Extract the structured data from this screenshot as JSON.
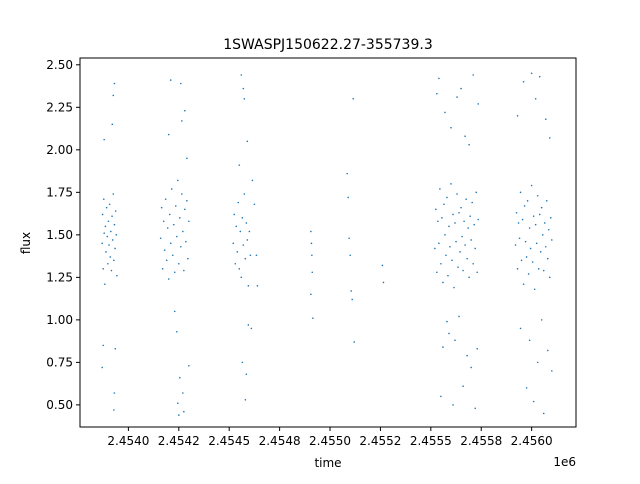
{
  "chart_data": {
    "type": "scatter",
    "title": "1SWASPJ150622.27-355739.3",
    "xlabel": "time",
    "ylabel": "flux",
    "x_offset_label": "1e6",
    "xlim": [
      2453760,
      2456220
    ],
    "ylim": [
      0.37,
      2.54
    ],
    "x_ticks": [
      2454000,
      2454250,
      2454500,
      2454750,
      2455000,
      2455250,
      2455500,
      2455750,
      2456000
    ],
    "x_tick_labels": [
      "2.4540",
      "2.4542",
      "2.4545",
      "2.4548",
      "2.4550",
      "2.4552",
      "2.4555",
      "2.4558",
      "2.4560"
    ],
    "y_ticks": [
      0.5,
      0.75,
      1.0,
      1.25,
      1.5,
      1.75,
      2.0,
      2.25,
      2.5
    ],
    "y_tick_labels": [
      "0.50",
      "0.75",
      "1.00",
      "1.25",
      "1.50",
      "1.75",
      "2.00",
      "2.25",
      "2.50"
    ],
    "grid": false,
    "point_color": "#1f77b4",
    "series": [
      {
        "points": [
          [
            2453870,
            1.45
          ],
          [
            2453872,
            1.62
          ],
          [
            2453875,
            1.3
          ],
          [
            2453878,
            1.71
          ],
          [
            2453880,
            1.51
          ],
          [
            2453883,
            1.21
          ],
          [
            2453886,
            1.55
          ],
          [
            2453889,
            1.4
          ],
          [
            2453892,
            1.66
          ],
          [
            2453895,
            1.49
          ],
          [
            2453898,
            1.33
          ],
          [
            2453901,
            1.58
          ],
          [
            2453904,
            1.44
          ],
          [
            2453907,
            1.68
          ],
          [
            2453910,
            1.37
          ],
          [
            2453913,
            1.52
          ],
          [
            2453916,
            1.29
          ],
          [
            2453919,
            1.61
          ],
          [
            2453922,
            1.47
          ],
          [
            2453925,
            1.74
          ],
          [
            2453928,
            1.35
          ],
          [
            2453931,
            1.56
          ],
          [
            2453934,
            1.42
          ],
          [
            2453937,
            1.64
          ],
          [
            2453940,
            1.5
          ],
          [
            2453943,
            1.26
          ],
          [
            2453880,
            2.06
          ],
          [
            2453875,
            0.85
          ],
          [
            2453870,
            0.72
          ],
          [
            2453931,
            2.39
          ],
          [
            2453925,
            2.32
          ],
          [
            2453928,
            0.47
          ],
          [
            2453935,
            0.83
          ],
          [
            2453920,
            2.15
          ],
          [
            2453930,
            0.57
          ],
          [
            2454160,
            1.48
          ],
          [
            2454165,
            1.66
          ],
          [
            2454170,
            1.3
          ],
          [
            2454175,
            1.58
          ],
          [
            2454180,
            1.41
          ],
          [
            2454185,
            1.71
          ],
          [
            2454190,
            1.35
          ],
          [
            2454195,
            1.54
          ],
          [
            2454200,
            1.24
          ],
          [
            2454205,
            1.62
          ],
          [
            2454210,
            1.45
          ],
          [
            2454215,
            1.77
          ],
          [
            2454220,
            1.38
          ],
          [
            2454225,
            1.56
          ],
          [
            2454230,
            1.28
          ],
          [
            2454235,
            1.67
          ],
          [
            2454240,
            1.49
          ],
          [
            2454245,
            1.82
          ],
          [
            2454250,
            1.33
          ],
          [
            2454255,
            1.6
          ],
          [
            2454260,
            1.43
          ],
          [
            2454265,
            1.74
          ],
          [
            2454270,
            1.52
          ],
          [
            2454275,
            1.29
          ],
          [
            2454280,
            1.65
          ],
          [
            2454285,
            1.46
          ],
          [
            2454290,
            1.7
          ],
          [
            2454295,
            1.36
          ],
          [
            2454300,
            1.58
          ],
          [
            2454200,
            2.09
          ],
          [
            2454210,
            2.41
          ],
          [
            2454230,
            1.05
          ],
          [
            2454240,
            0.93
          ],
          [
            2454245,
            0.51
          ],
          [
            2454250,
            0.44
          ],
          [
            2454255,
            0.66
          ],
          [
            2454260,
            2.39
          ],
          [
            2454265,
            2.17
          ],
          [
            2454270,
            0.57
          ],
          [
            2454275,
            0.46
          ],
          [
            2454280,
            2.23
          ],
          [
            2454290,
            1.95
          ],
          [
            2454300,
            0.73
          ],
          [
            2454520,
            1.45
          ],
          [
            2454525,
            1.62
          ],
          [
            2454530,
            1.33
          ],
          [
            2454535,
            1.55
          ],
          [
            2454540,
            1.4
          ],
          [
            2454545,
            1.69
          ],
          [
            2454550,
            1.3
          ],
          [
            2454555,
            1.52
          ],
          [
            2454560,
            1.25
          ],
          [
            2454565,
            1.6
          ],
          [
            2454570,
            1.44
          ],
          [
            2454575,
            1.74
          ],
          [
            2454580,
            1.36
          ],
          [
            2454585,
            1.57
          ],
          [
            2454590,
            1.47
          ],
          [
            2454595,
            1.2
          ],
          [
            2454560,
            2.44
          ],
          [
            2454570,
            2.36
          ],
          [
            2454575,
            2.3
          ],
          [
            2454580,
            0.53
          ],
          [
            2454585,
            0.68
          ],
          [
            2454590,
            2.05
          ],
          [
            2454595,
            0.97
          ],
          [
            2454565,
            0.75
          ],
          [
            2454550,
            1.91
          ],
          [
            2454600,
            1.52
          ],
          [
            2454605,
            1.38
          ],
          [
            2454610,
            0.95
          ],
          [
            2454615,
            1.82
          ],
          [
            2454625,
            1.68
          ],
          [
            2454635,
            1.38
          ],
          [
            2454640,
            1.2
          ],
          [
            2454905,
            1.52
          ],
          [
            2454908,
            1.45
          ],
          [
            2454910,
            1.38
          ],
          [
            2454912,
            1.28
          ],
          [
            2454915,
            1.01
          ],
          [
            2454905,
            1.15
          ],
          [
            2455085,
            1.86
          ],
          [
            2455090,
            1.72
          ],
          [
            2455095,
            1.48
          ],
          [
            2455100,
            1.38
          ],
          [
            2455105,
            1.17
          ],
          [
            2455110,
            1.12
          ],
          [
            2455115,
            2.3
          ],
          [
            2455120,
            0.87
          ],
          [
            2455260,
            1.32
          ],
          [
            2455265,
            1.22
          ],
          [
            2455520,
            1.42
          ],
          [
            2455525,
            1.65
          ],
          [
            2455530,
            1.28
          ],
          [
            2455535,
            1.58
          ],
          [
            2455540,
            1.45
          ],
          [
            2455545,
            1.77
          ],
          [
            2455550,
            1.33
          ],
          [
            2455555,
            1.6
          ],
          [
            2455560,
            1.22
          ],
          [
            2455565,
            1.68
          ],
          [
            2455570,
            1.5
          ],
          [
            2455575,
            1.38
          ],
          [
            2455580,
            1.72
          ],
          [
            2455585,
            1.26
          ],
          [
            2455590,
            1.55
          ],
          [
            2455595,
            1.43
          ],
          [
            2455600,
            1.8
          ],
          [
            2455605,
            1.35
          ],
          [
            2455610,
            1.62
          ],
          [
            2455615,
            1.19
          ],
          [
            2455620,
            1.57
          ],
          [
            2455625,
            1.46
          ],
          [
            2455630,
            1.74
          ],
          [
            2455635,
            1.31
          ],
          [
            2455640,
            1.63
          ],
          [
            2455645,
            1.4
          ],
          [
            2455650,
            1.66
          ],
          [
            2455655,
            1.49
          ],
          [
            2455660,
            1.29
          ],
          [
            2455665,
            1.58
          ],
          [
            2455670,
            1.44
          ],
          [
            2455675,
            1.71
          ],
          [
            2455680,
            1.36
          ],
          [
            2455685,
            1.54
          ],
          [
            2455690,
            1.25
          ],
          [
            2455695,
            1.61
          ],
          [
            2455700,
            1.47
          ],
          [
            2455705,
            1.69
          ],
          [
            2455710,
            1.33
          ],
          [
            2455715,
            1.56
          ],
          [
            2455720,
            1.42
          ],
          [
            2455725,
            1.75
          ],
          [
            2455730,
            1.28
          ],
          [
            2455735,
            1.59
          ],
          [
            2455530,
            2.33
          ],
          [
            2455540,
            2.42
          ],
          [
            2455550,
            0.55
          ],
          [
            2455560,
            0.84
          ],
          [
            2455570,
            2.22
          ],
          [
            2455580,
            0.99
          ],
          [
            2455590,
            0.92
          ],
          [
            2455600,
            2.13
          ],
          [
            2455610,
            0.5
          ],
          [
            2455620,
            0.88
          ],
          [
            2455630,
            2.31
          ],
          [
            2455640,
            1.02
          ],
          [
            2455650,
            2.36
          ],
          [
            2455660,
            0.61
          ],
          [
            2455670,
            2.08
          ],
          [
            2455680,
            0.79
          ],
          [
            2455690,
            2.03
          ],
          [
            2455700,
            0.72
          ],
          [
            2455710,
            2.44
          ],
          [
            2455720,
            0.48
          ],
          [
            2455730,
            0.83
          ],
          [
            2455735,
            2.27
          ],
          [
            2455920,
            1.44
          ],
          [
            2455925,
            1.63
          ],
          [
            2455930,
            1.3
          ],
          [
            2455935,
            1.57
          ],
          [
            2455940,
            1.48
          ],
          [
            2455945,
            1.75
          ],
          [
            2455950,
            1.35
          ],
          [
            2455955,
            1.59
          ],
          [
            2455960,
            1.21
          ],
          [
            2455965,
            1.67
          ],
          [
            2455970,
            1.46
          ],
          [
            2455975,
            1.37
          ],
          [
            2455980,
            1.7
          ],
          [
            2455985,
            1.27
          ],
          [
            2455990,
            1.54
          ],
          [
            2455995,
            1.42
          ],
          [
            2456000,
            1.79
          ],
          [
            2456005,
            1.34
          ],
          [
            2456010,
            1.61
          ],
          [
            2456015,
            1.18
          ],
          [
            2456020,
            1.56
          ],
          [
            2456025,
            1.45
          ],
          [
            2456030,
            1.73
          ],
          [
            2456035,
            1.3
          ],
          [
            2456040,
            1.62
          ],
          [
            2456045,
            1.4
          ],
          [
            2456050,
            1.66
          ],
          [
            2456055,
            1.5
          ],
          [
            2456060,
            1.29
          ],
          [
            2456065,
            1.57
          ],
          [
            2456070,
            1.43
          ],
          [
            2456075,
            1.7
          ],
          [
            2456080,
            1.36
          ],
          [
            2456085,
            1.53
          ],
          [
            2456090,
            1.25
          ],
          [
            2456095,
            1.6
          ],
          [
            2456100,
            1.47
          ],
          [
            2455930,
            2.2
          ],
          [
            2455945,
            0.95
          ],
          [
            2455960,
            2.4
          ],
          [
            2455975,
            0.6
          ],
          [
            2455990,
            0.88
          ],
          [
            2456000,
            2.45
          ],
          [
            2456010,
            0.52
          ],
          [
            2456020,
            2.3
          ],
          [
            2456030,
            0.75
          ],
          [
            2456040,
            2.43
          ],
          [
            2456050,
            1.0
          ],
          [
            2456060,
            0.45
          ],
          [
            2456070,
            2.18
          ],
          [
            2456080,
            0.82
          ],
          [
            2456090,
            2.07
          ],
          [
            2456100,
            0.7
          ]
        ]
      }
    ]
  }
}
